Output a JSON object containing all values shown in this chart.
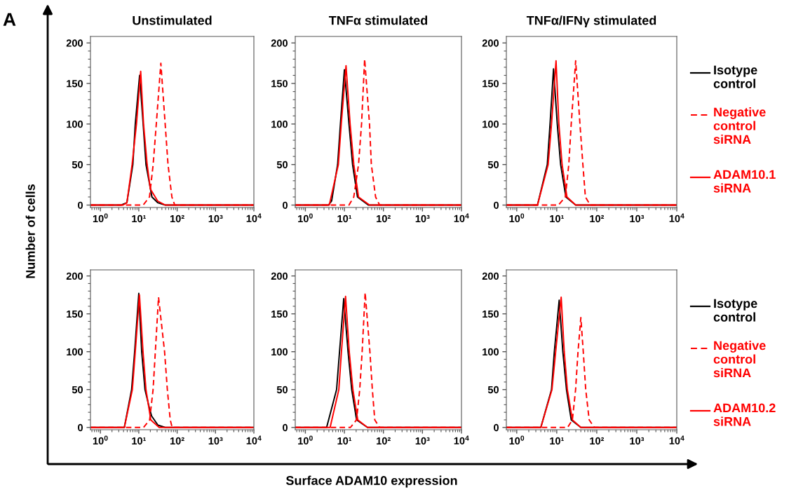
{
  "chart_data": [
    {
      "type": "line",
      "title": "Unstimulated",
      "ylabel": "Number of cells",
      "annotations": [
        "A"
      ],
      "log": "x",
      "xlim": [
        0.55,
        10000
      ],
      "ylim": [
        -3,
        208
      ],
      "xticks": [
        {
          "value": 1,
          "label": "10$^{0}$"
        },
        {
          "value": 10,
          "label": "10¹"
        },
        {
          "value": 100,
          "label": "10²"
        },
        {
          "value": 1000,
          "label": "10³"
        },
        {
          "value": 10000,
          "label": "10$^{4}$"
        }
      ],
      "yticks": [
        0,
        50,
        100,
        150,
        200
      ],
      "series": [
        {
          "color": "#000000",
          "line_style": "solid",
          "x": [
            0.55,
            3.4,
            4.9,
            7,
            8.1,
            10.5,
            13,
            15.4,
            22,
            31,
            49,
            10000
          ],
          "values": [
            0,
            0,
            3,
            50,
            100,
            160,
            100,
            50,
            10,
            3,
            0,
            0
          ]
        },
        {
          "color": "#ff0000",
          "line_style": "solid",
          "x": [
            0.55,
            3.9,
            4.9,
            6.7,
            8.7,
            11.2,
            13.3,
            16.5,
            20,
            31,
            49,
            10000
          ],
          "values": [
            0,
            0,
            3,
            50,
            100,
            165,
            100,
            50,
            20,
            5,
            0,
            0
          ]
        },
        {
          "color": "#ff0000",
          "line_style": "dashed",
          "x": [
            0.55,
            13,
            19,
            23.7,
            28.6,
            37.6,
            48.7,
            57.8,
            72.9,
            86.6,
            10000
          ],
          "values": [
            0,
            0,
            10,
            50,
            100,
            175,
            100,
            50,
            10,
            0,
            0
          ]
        }
      ]
    },
    {
      "type": "line",
      "title": "TNFα stimulated",
      "log": "x",
      "xlim": [
        0.55,
        10000
      ],
      "ylim": [
        -3,
        208
      ],
      "xticks": [
        {
          "value": 1,
          "label": "10$^{0}$"
        },
        {
          "value": 10,
          "label": "10¹"
        },
        {
          "value": 100,
          "label": "10²"
        },
        {
          "value": 1000,
          "label": "10³"
        },
        {
          "value": 10000,
          "label": "10$^{4}$"
        }
      ],
      "yticks": [
        0,
        50,
        100,
        150,
        200
      ],
      "series": [
        {
          "color": "#000000",
          "line_style": "solid",
          "x": [
            0.55,
            3.9,
            4.7,
            6.7,
            7.9,
            10,
            13.1,
            16.2,
            21.6,
            41,
            10000
          ],
          "values": [
            0,
            0,
            5,
            50,
            100,
            167,
            100,
            50,
            10,
            0,
            0
          ]
        },
        {
          "color": "#ff0000",
          "line_style": "solid",
          "x": [
            0.55,
            4.1,
            7,
            8.3,
            11,
            14,
            17.4,
            23,
            44,
            10000
          ],
          "values": [
            0,
            0,
            50,
            100,
            172,
            100,
            50,
            10,
            0,
            0
          ]
        },
        {
          "color": "#ff0000",
          "line_style": "dashed",
          "x": [
            0.55,
            13.1,
            17.4,
            23,
            27.5,
            33,
            44,
            49,
            63,
            80,
            10000
          ],
          "values": [
            0,
            0,
            10,
            50,
            100,
            180,
            100,
            50,
            10,
            0,
            0
          ]
        }
      ]
    },
    {
      "type": "line",
      "title": "TNFα/IFNγ stimulated",
      "log": "x",
      "legend": "right",
      "xlim": [
        0.55,
        10000
      ],
      "ylim": [
        -3,
        208
      ],
      "xticks": [
        {
          "value": 1,
          "label": "10$^{0}$"
        },
        {
          "value": 10,
          "label": "10¹"
        },
        {
          "value": 100,
          "label": "10²"
        },
        {
          "value": 1000,
          "label": "10³"
        },
        {
          "value": 10000,
          "label": "10$^{4}$"
        }
      ],
      "yticks": [
        0,
        50,
        100,
        150,
        200
      ],
      "series": [
        {
          "name": "Isotype control",
          "color": "#000000",
          "line_style": "solid",
          "x": [
            0.55,
            3.3,
            5.8,
            6.8,
            8.3,
            10.3,
            12.5,
            16.9,
            29.7,
            10000
          ],
          "values": [
            0,
            0,
            50,
            100,
            168,
            100,
            50,
            10,
            0,
            0
          ]
        },
        {
          "name": "Negative control siRNA",
          "color": "#ff0000",
          "line_style": "dashed",
          "x": [
            0.55,
            11,
            16.4,
            20,
            23,
            29.7,
            38,
            45,
            52,
            69,
            10000
          ],
          "values": [
            0,
            0,
            10,
            50,
            100,
            178,
            100,
            50,
            10,
            0,
            0
          ]
        },
        {
          "name": "ADAM10.1 siRNA",
          "color": "#ff0000",
          "line_style": "solid",
          "x": [
            0.55,
            3.3,
            6.1,
            7.4,
            9.6,
            11.3,
            13.6,
            18,
            29.7,
            10000
          ],
          "values": [
            0,
            0,
            50,
            100,
            178,
            100,
            50,
            10,
            0,
            0
          ]
        }
      ]
    },
    {
      "type": "line",
      "log": "x",
      "xlim": [
        0.55,
        10000
      ],
      "ylim": [
        -3,
        208
      ],
      "xticks": [
        {
          "value": 1,
          "label": "10$^{0}$"
        },
        {
          "value": 10,
          "label": "10¹"
        },
        {
          "value": 100,
          "label": "10²"
        },
        {
          "value": 1000,
          "label": "10³"
        },
        {
          "value": 10000,
          "label": "10$^{4}$"
        }
      ],
      "yticks": [
        0,
        50,
        100,
        150,
        200
      ],
      "series": [
        {
          "color": "#000000",
          "line_style": "solid",
          "x": [
            0.55,
            4.2,
            6.5,
            7.8,
            10,
            11.9,
            14.5,
            19,
            21.6,
            31.6,
            48.7,
            10000
          ],
          "values": [
            0,
            0,
            50,
            100,
            177,
            100,
            50,
            25,
            15,
            3,
            0,
            0
          ]
        },
        {
          "color": "#ff0000",
          "line_style": "solid",
          "x": [
            0.55,
            4.2,
            6.8,
            8.1,
            10.4,
            12.9,
            15.4,
            20.5,
            34,
            10000
          ],
          "values": [
            0,
            0,
            50,
            100,
            175,
            100,
            50,
            10,
            0,
            0
          ]
        },
        {
          "color": "#ff0000",
          "line_style": "dashed",
          "x": [
            0.55,
            13.3,
            19.2,
            23.6,
            27,
            32.7,
            47,
            55.5,
            66,
            74,
            10000
          ],
          "values": [
            0,
            0,
            10,
            50,
            100,
            172,
            100,
            50,
            10,
            0,
            0
          ]
        }
      ]
    },
    {
      "type": "line",
      "xlabel": "Surface ADAM10 expression",
      "log": "x",
      "xlim": [
        0.55,
        10000
      ],
      "ylim": [
        -3,
        208
      ],
      "xticks": [
        {
          "value": 1,
          "label": "10$^{0}$"
        },
        {
          "value": 10,
          "label": "10¹"
        },
        {
          "value": 100,
          "label": "10²"
        },
        {
          "value": 1000,
          "label": "10³"
        },
        {
          "value": 10000,
          "label": "10$^{4}$"
        }
      ],
      "yticks": [
        0,
        50,
        100,
        150,
        200
      ],
      "series": [
        {
          "color": "#000000",
          "line_style": "solid",
          "x": [
            0.55,
            3.5,
            6.3,
            7.5,
            9.6,
            12.4,
            15.4,
            20.5,
            39,
            10000
          ],
          "values": [
            0,
            0,
            50,
            100,
            170,
            100,
            50,
            10,
            0,
            0
          ]
        },
        {
          "color": "#ff0000",
          "line_style": "solid",
          "x": [
            0.55,
            4.3,
            7.2,
            8.4,
            10.7,
            13.3,
            16.5,
            22,
            39,
            10000
          ],
          "values": [
            0,
            0,
            50,
            100,
            173,
            100,
            50,
            10,
            0,
            0
          ]
        },
        {
          "color": "#ff0000",
          "line_style": "dashed",
          "x": [
            0.55,
            14.3,
            20.5,
            24.7,
            28.5,
            34,
            45,
            52,
            60,
            80,
            10000
          ],
          "values": [
            0,
            0,
            10,
            50,
            100,
            178,
            100,
            50,
            10,
            0,
            0
          ]
        }
      ]
    },
    {
      "type": "line",
      "log": "x",
      "legend": "right",
      "xlim": [
        0.55,
        10000
      ],
      "ylim": [
        -3,
        208
      ],
      "xticks": [
        {
          "value": 1,
          "label": "10$^{0}$"
        },
        {
          "value": 10,
          "label": "10¹"
        },
        {
          "value": 100,
          "label": "10²"
        },
        {
          "value": 1000,
          "label": "10³"
        },
        {
          "value": 10000,
          "label": "10$^{4}$"
        }
      ],
      "yticks": [
        0,
        50,
        100,
        150,
        200
      ],
      "series": [
        {
          "name": "Isotype control",
          "color": "#000000",
          "line_style": "solid",
          "x": [
            0.55,
            4,
            7.4,
            8.7,
            11.5,
            14.2,
            17.5,
            23,
            40,
            10000
          ],
          "values": [
            0,
            0,
            50,
            100,
            168,
            100,
            50,
            10,
            0,
            0
          ]
        },
        {
          "name": "Negative control siRNA",
          "color": "#ff0000",
          "line_style": "dashed",
          "x": [
            0.55,
            18.7,
            24.6,
            29.6,
            34,
            40,
            46,
            53,
            64.7,
            87,
            10000
          ],
          "values": [
            0,
            0,
            10,
            50,
            100,
            145,
            100,
            50,
            10,
            0,
            0
          ]
        },
        {
          "name": "ADAM10.2 siRNA",
          "color": "#ff0000",
          "line_style": "solid",
          "x": [
            0.55,
            4,
            7.6,
            9.4,
            12.9,
            15.4,
            18.4,
            24.6,
            40,
            10000
          ],
          "values": [
            0,
            0,
            50,
            100,
            172,
            100,
            50,
            10,
            0,
            0
          ]
        }
      ]
    }
  ]
}
